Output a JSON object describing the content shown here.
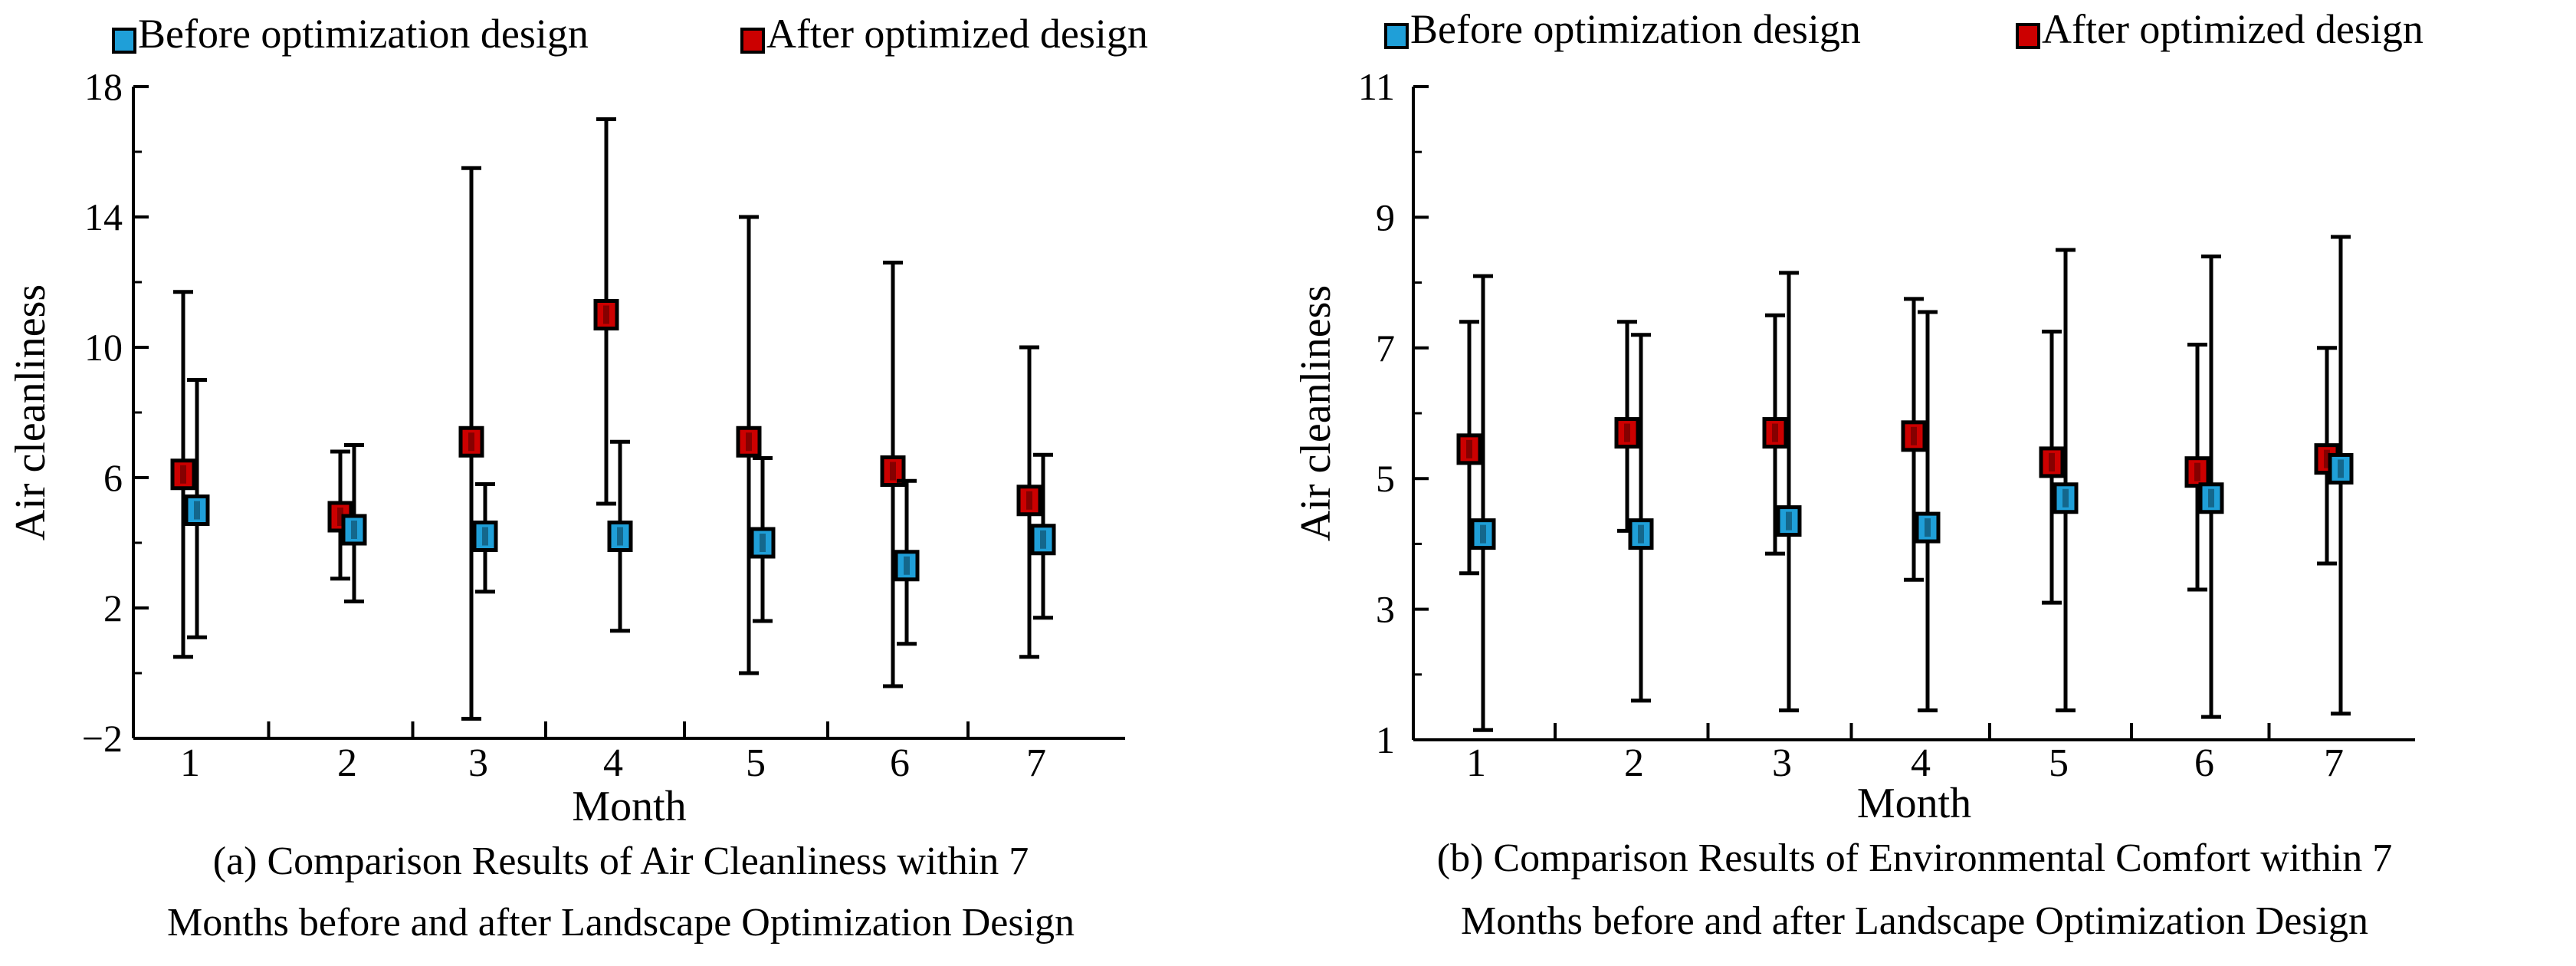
{
  "chart_data": [
    {
      "type": "errorbar",
      "title": "",
      "caption": [
        "(a) Comparison Results of Air Cleanliness within 7",
        "Months before and after Landscape Optimization Design"
      ],
      "xlabel": "Month",
      "ylabel": "Air cleanliness",
      "categories": [
        "1",
        "2",
        "3",
        "4",
        "5",
        "6",
        "7"
      ],
      "ylim": [
        -2,
        18
      ],
      "yticks": [
        -2,
        2,
        6,
        10,
        14,
        18
      ],
      "ytick_labels": [
        "−2",
        "2",
        "6",
        "10",
        "14",
        "18"
      ],
      "legend": {
        "position": "top",
        "entries": [
          "Before optimization design",
          "After optimized design"
        ]
      },
      "series": [
        {
          "name": "After optimized design",
          "color": "#cc0000",
          "values": [
            6.1,
            4.8,
            7.1,
            11.0,
            7.1,
            6.2,
            5.3
          ],
          "lower": [
            0.5,
            2.9,
            -1.4,
            5.2,
            0.0,
            -0.4,
            0.5
          ],
          "upper": [
            11.7,
            6.8,
            15.5,
            17.0,
            14.0,
            12.6,
            10.0
          ]
        },
        {
          "name": "Before optimization design",
          "color": "#1f9fd8",
          "values": [
            5.0,
            4.4,
            4.2,
            4.2,
            4.0,
            3.3,
            4.1
          ],
          "lower": [
            1.1,
            2.2,
            2.5,
            1.3,
            1.6,
            0.9,
            1.7
          ],
          "upper": [
            9.0,
            7.0,
            5.8,
            7.1,
            6.6,
            5.9,
            6.7
          ]
        }
      ]
    },
    {
      "type": "errorbar",
      "title": "",
      "caption": [
        "(b) Comparison Results of Environmental Comfort within 7",
        "Months before and after Landscape Optimization Design"
      ],
      "xlabel": "Month",
      "ylabel": "Air cleanliness",
      "categories": [
        "1",
        "2",
        "3",
        "4",
        "5",
        "6",
        "7"
      ],
      "ylim": [
        1,
        11
      ],
      "yticks": [
        1,
        3,
        5,
        7,
        9,
        11
      ],
      "ytick_labels": [
        "1",
        "3",
        "5",
        "7",
        "9",
        "11"
      ],
      "legend": {
        "position": "top",
        "entries": [
          "Before optimization design",
          "After optimized design"
        ]
      },
      "series": [
        {
          "name": "After optimized design",
          "color": "#cc0000",
          "values": [
            5.45,
            5.7,
            5.7,
            5.65,
            5.25,
            5.1,
            5.3
          ],
          "lower": [
            3.55,
            4.2,
            3.85,
            3.45,
            3.1,
            3.3,
            3.7
          ],
          "upper": [
            7.4,
            7.4,
            7.5,
            7.75,
            7.25,
            7.05,
            7.0
          ]
        },
        {
          "name": "Before optimization design",
          "color": "#1f9fd8",
          "values": [
            4.15,
            4.15,
            4.35,
            4.25,
            4.7,
            4.7,
            5.15
          ],
          "lower": [
            1.15,
            1.6,
            1.45,
            1.45,
            1.45,
            1.35,
            1.4
          ],
          "upper": [
            8.1,
            7.2,
            8.15,
            7.55,
            8.5,
            8.4,
            8.7
          ]
        }
      ]
    }
  ]
}
